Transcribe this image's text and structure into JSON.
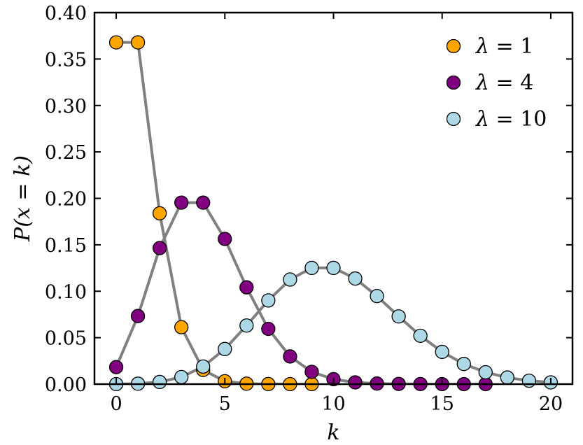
{
  "chart_data": {
    "type": "line",
    "xlabel": "k",
    "ylabel": "P(x = k)",
    "xlim": [
      -1,
      21
    ],
    "ylim": [
      0,
      0.4
    ],
    "x_ticks": [
      "0",
      "5",
      "10",
      "15",
      "20"
    ],
    "y_ticks": [
      "0.00",
      "0.05",
      "0.10",
      "0.15",
      "0.20",
      "0.25",
      "0.30",
      "0.35",
      "0.40"
    ],
    "grid": false,
    "legend_position": "top-right",
    "line_color": "#808080",
    "series": [
      {
        "name": "λ = 1",
        "legend_symbol": "λ",
        "legend_value": "1",
        "color": "#FFA500",
        "x": [
          0,
          1,
          2,
          3,
          4,
          5,
          6,
          7,
          8,
          9
        ],
        "values": [
          0.3679,
          0.3679,
          0.1839,
          0.0613,
          0.0153,
          0.0031,
          0.0005,
          0.0001,
          0.0,
          0.0
        ]
      },
      {
        "name": "λ = 4",
        "legend_symbol": "λ",
        "legend_value": "4",
        "color": "#800080",
        "x": [
          0,
          1,
          2,
          3,
          4,
          5,
          6,
          7,
          8,
          9,
          10,
          11,
          12,
          13,
          14,
          15,
          16,
          17
        ],
        "values": [
          0.0183,
          0.0733,
          0.1465,
          0.1954,
          0.1954,
          0.1563,
          0.1042,
          0.0595,
          0.0298,
          0.0132,
          0.0053,
          0.0019,
          0.0006,
          0.0002,
          0.0001,
          0.0,
          0.0,
          0.0
        ]
      },
      {
        "name": "λ = 10",
        "legend_symbol": "λ",
        "legend_value": "10",
        "color": "#ADD8E6",
        "x": [
          0,
          1,
          2,
          3,
          4,
          5,
          6,
          7,
          8,
          9,
          10,
          11,
          12,
          13,
          14,
          15,
          16,
          17,
          18,
          19,
          20
        ],
        "values": [
          0.0,
          0.0005,
          0.0023,
          0.0076,
          0.0189,
          0.0378,
          0.0631,
          0.0901,
          0.1126,
          0.1251,
          0.1251,
          0.1137,
          0.0948,
          0.0729,
          0.0521,
          0.0347,
          0.0217,
          0.0128,
          0.0071,
          0.0037,
          0.0019
        ]
      }
    ]
  }
}
